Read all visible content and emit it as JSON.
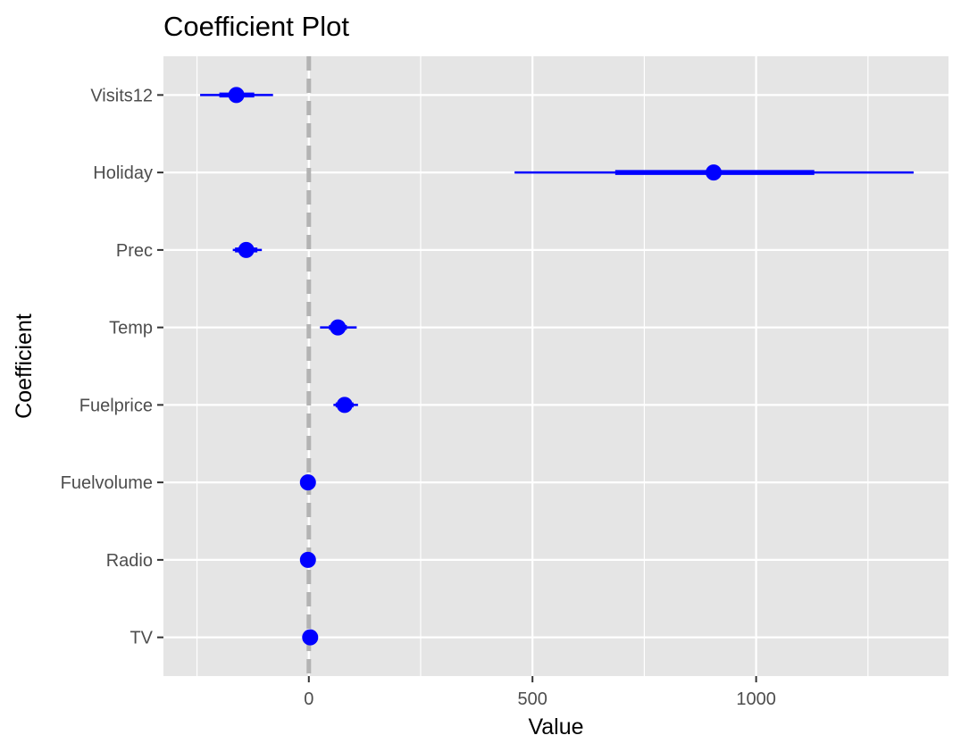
{
  "chart_data": {
    "type": "scatter",
    "title": "Coefficient Plot",
    "xlabel": "Value",
    "ylabel": "Coefficient",
    "xlim": [
      -325,
      1430
    ],
    "xticks": [
      0,
      500,
      1000
    ],
    "x_tick_labels": [
      "0",
      "500",
      "1000"
    ],
    "x_minor_gridlines": [
      -250,
      250,
      750,
      1250
    ],
    "reference_line": {
      "x": 0,
      "style": "dashed",
      "color": "#b3b3b3"
    },
    "categories": [
      "Visits12",
      "Holiday",
      "Prec",
      "Temp",
      "Fuelprice",
      "Fuelvolume",
      "Radio",
      "TV"
    ],
    "series": [
      {
        "estimates": [
          -162,
          905,
          -140,
          65,
          80,
          -2,
          -2,
          3
        ],
        "inner_interval_low": [
          -200,
          685,
          -165,
          45,
          60,
          -4,
          -4,
          0
        ],
        "inner_interval_high": [
          -122,
          1130,
          -115,
          85,
          100,
          0,
          0,
          6
        ],
        "outer_interval_low": [
          -243,
          460,
          -170,
          25,
          55,
          -6,
          -6,
          -3
        ],
        "outer_interval_high": [
          -80,
          1352,
          -105,
          107,
          110,
          2,
          2,
          8
        ]
      }
    ],
    "point_color": "#0000ff",
    "panel_background": "#e5e5e5",
    "gridline_color": "#ffffff",
    "grid": true,
    "legend": "none"
  }
}
